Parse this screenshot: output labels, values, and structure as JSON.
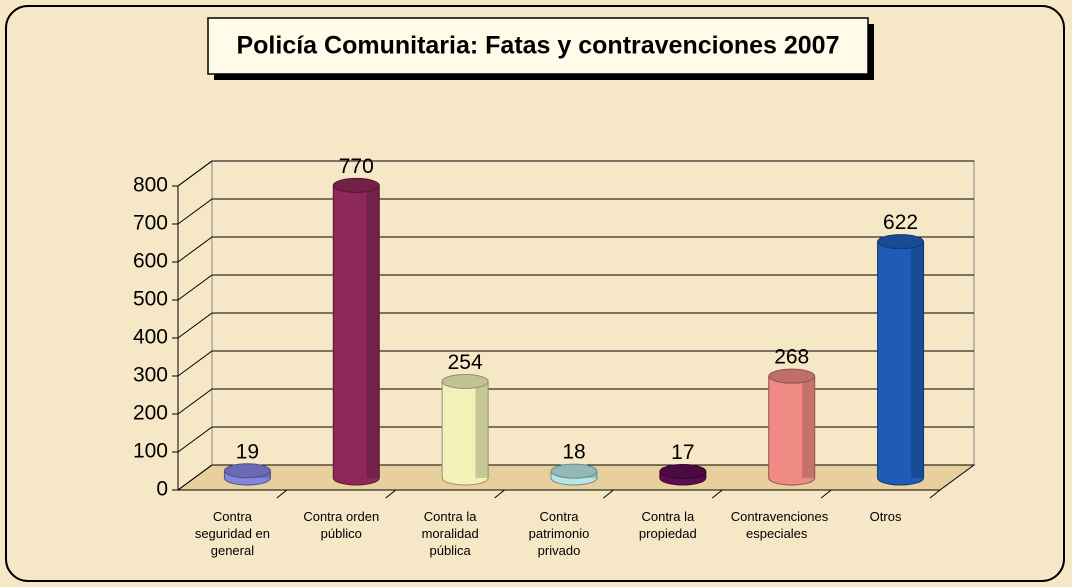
{
  "chart_data": {
    "type": "bar",
    "title": "Policía Comunitaria: Fatas y contravenciones 2007",
    "categories": [
      "Contra seguridad en general",
      "Contra orden público",
      "Contra la moralidad pública",
      "Contra patrimonio privado",
      "Contra la propiedad",
      "Contravenciones especiales",
      "Otros"
    ],
    "values": [
      19,
      770,
      254,
      18,
      17,
      268,
      622
    ],
    "colors": [
      "#8585e0",
      "#8e2858",
      "#f2f2b8",
      "#b8e6e6",
      "#5e0c52",
      "#f08a84",
      "#1f5cb8"
    ],
    "ylim": [
      0,
      800
    ],
    "yticks": [
      0,
      100,
      200,
      300,
      400,
      500,
      600,
      700,
      800
    ],
    "grid": true
  }
}
